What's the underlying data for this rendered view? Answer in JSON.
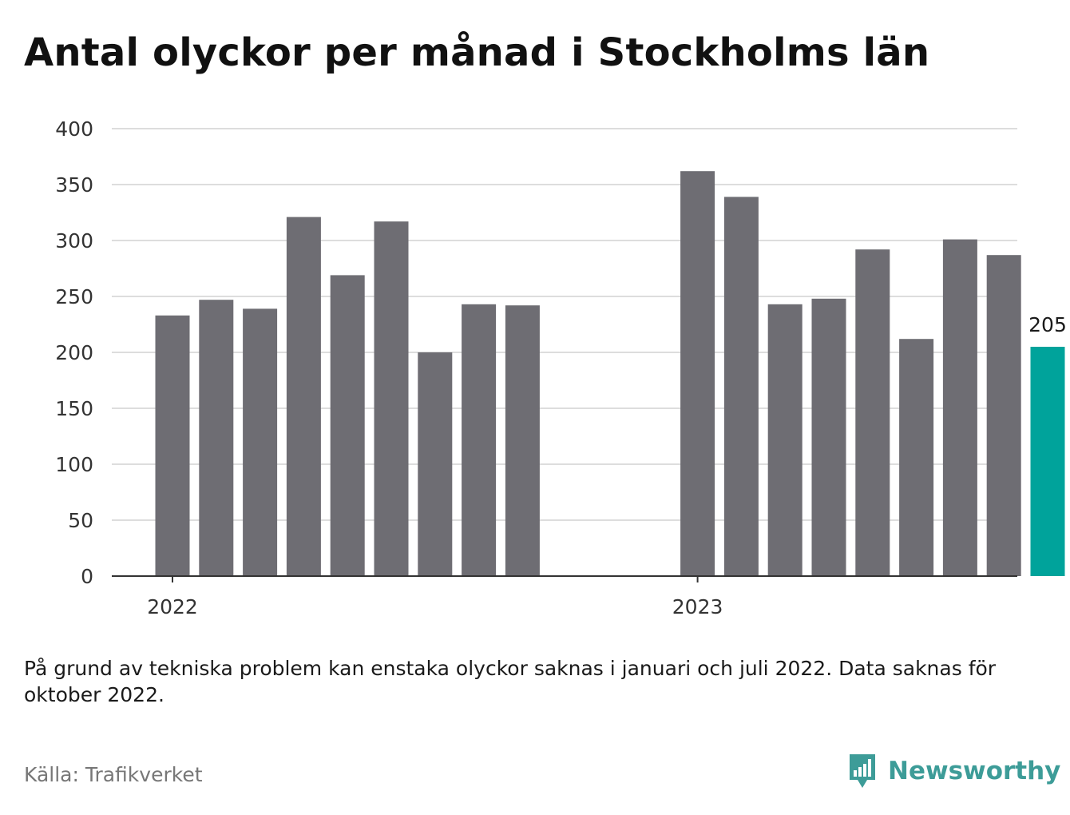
{
  "title": "Antal olyckor per månad i Stockholms län",
  "note": "På grund av tekniska problem kan enstaka olyckor saknas i januari och juli 2022. Data saknas för oktober 2022.",
  "source": "Källa: Trafikverket",
  "brand": {
    "name": "Newsworthy",
    "icon": "newsworthy-logo-icon"
  },
  "colors": {
    "bar": "#6e6d73",
    "highlight": "#00a39b",
    "grid": "#dddddd",
    "axis": "#333333"
  },
  "chart_data": {
    "type": "bar",
    "categories": [
      "2022-01",
      "2022-02",
      "2022-03",
      "2022-04",
      "2022-05",
      "2022-06",
      "2022-07",
      "2022-08",
      "2022-09",
      "2022-10",
      "2022-11",
      "2022-12",
      "2023-01",
      "2023-02",
      "2023-03",
      "2023-04",
      "2023-05",
      "2023-06",
      "2023-07",
      "2023-08",
      "2023-09",
      "2023-10",
      "2023-11",
      "2023-12"
    ],
    "values": [
      233,
      247,
      239,
      321,
      269,
      317,
      200,
      243,
      242,
      null,
      null,
      null,
      362,
      339,
      243,
      248,
      292,
      212,
      301,
      287,
      205,
      null,
      null,
      null
    ],
    "highlight_category": "2023-09",
    "highlight_label": "205",
    "x_tick_labels": [
      "2022",
      "2023"
    ],
    "y_ticks": [
      0,
      50,
      100,
      150,
      200,
      250,
      300,
      350,
      400
    ],
    "ylim": [
      0,
      400
    ],
    "grid": true,
    "legend": "none"
  }
}
